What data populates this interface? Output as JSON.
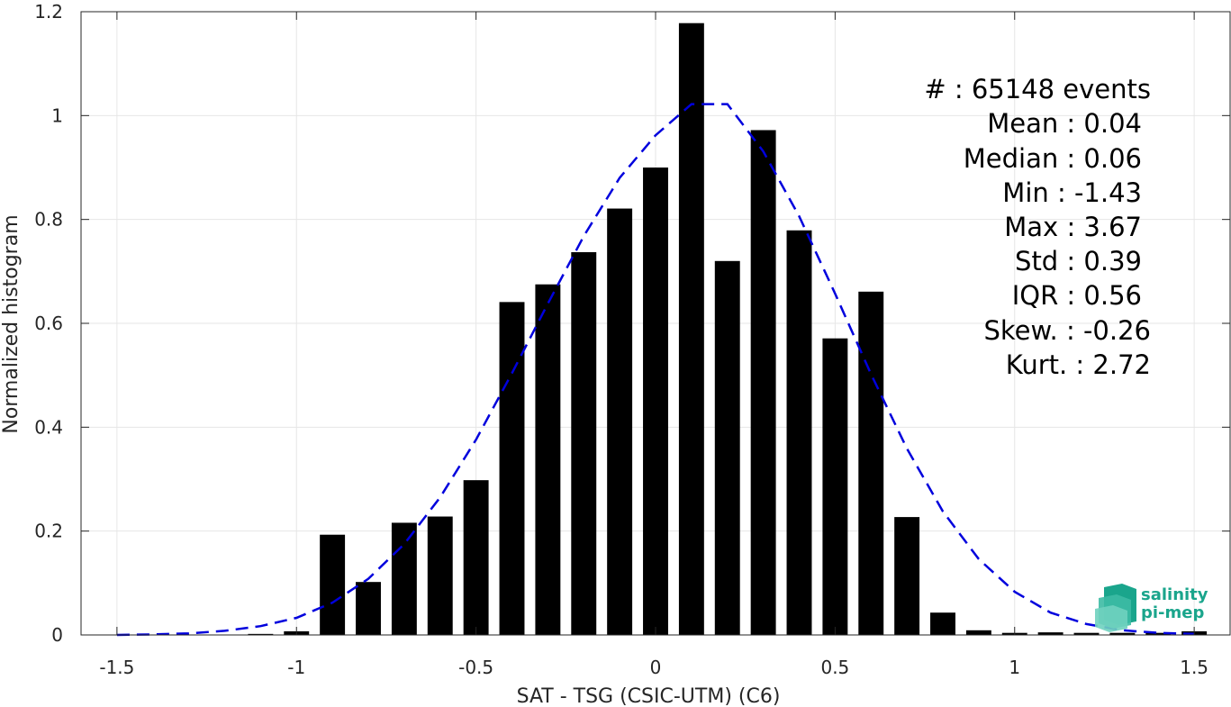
{
  "chart_data": {
    "type": "bar",
    "title": "",
    "xlabel": "SAT - TSG (CSIC-UTM) (C6)",
    "ylabel": "Normalized histogram",
    "xlim": [
      -1.6,
      1.6
    ],
    "ylim": [
      0,
      1.2
    ],
    "grid": true,
    "bar_width": 0.07,
    "xticks": [
      "-1.5",
      "-1",
      "-0.5",
      "0",
      "0.5",
      "1",
      "1.5"
    ],
    "xtick_values": [
      -1.5,
      -1,
      -0.5,
      0,
      0.5,
      1,
      1.5
    ],
    "yticks": [
      "0",
      "0.2",
      "0.4",
      "0.6",
      "0.8",
      "1",
      "1.2"
    ],
    "ytick_values": [
      0,
      0.2,
      0.4,
      0.6,
      0.8,
      1,
      1.2
    ],
    "series": [
      {
        "type": "bar",
        "color": "#000000",
        "x": [
          -1.1,
          -1.0,
          -0.9,
          -0.8,
          -0.7,
          -0.6,
          -0.5,
          -0.4,
          -0.3,
          -0.2,
          -0.1,
          0.0,
          0.1,
          0.2,
          0.3,
          0.4,
          0.5,
          0.6,
          0.7,
          0.8,
          0.9,
          1.0,
          1.1,
          1.2,
          1.3,
          1.4,
          1.5
        ],
        "values": [
          0.002,
          0.007,
          0.193,
          0.102,
          0.216,
          0.228,
          0.298,
          0.641,
          0.675,
          0.737,
          0.821,
          0.9,
          1.178,
          0.72,
          0.972,
          0.779,
          0.571,
          0.661,
          0.227,
          0.043,
          0.009,
          0.004,
          0.005,
          0.004,
          0.004,
          0.004,
          0.007
        ]
      },
      {
        "type": "line",
        "style": "dashed",
        "color": "#0000dd",
        "x": [
          -1.5,
          -1.4,
          -1.3,
          -1.2,
          -1.1,
          -1.0,
          -0.9,
          -0.8,
          -0.7,
          -0.6,
          -0.5,
          -0.4,
          -0.3,
          -0.2,
          -0.1,
          0.0,
          0.1,
          0.2,
          0.3,
          0.4,
          0.5,
          0.6,
          0.7,
          0.8,
          0.9,
          1.0,
          1.1,
          1.2,
          1.3,
          1.4,
          1.5
        ],
        "values": [
          0.0,
          0.001,
          0.003,
          0.008,
          0.017,
          0.033,
          0.062,
          0.108,
          0.175,
          0.265,
          0.376,
          0.504,
          0.638,
          0.768,
          0.88,
          0.962,
          1.022,
          1.022,
          0.931,
          0.806,
          0.657,
          0.502,
          0.359,
          0.238,
          0.146,
          0.083,
          0.043,
          0.021,
          0.009,
          0.004,
          0.002
        ]
      }
    ],
    "stats": [
      "#  : 65148 events",
      "Mean : 0.04",
      "Median : 0.06",
      "Min : -1.43",
      "Max : 3.67",
      "Std : 0.39",
      "IQR : 0.56",
      "Skew. : -0.26",
      "Kurt. : 2.72"
    ]
  },
  "logo": {
    "line1": "salinity",
    "line2": "pi-mep",
    "colors": [
      "#1aa58c",
      "#6fd1bf"
    ]
  }
}
